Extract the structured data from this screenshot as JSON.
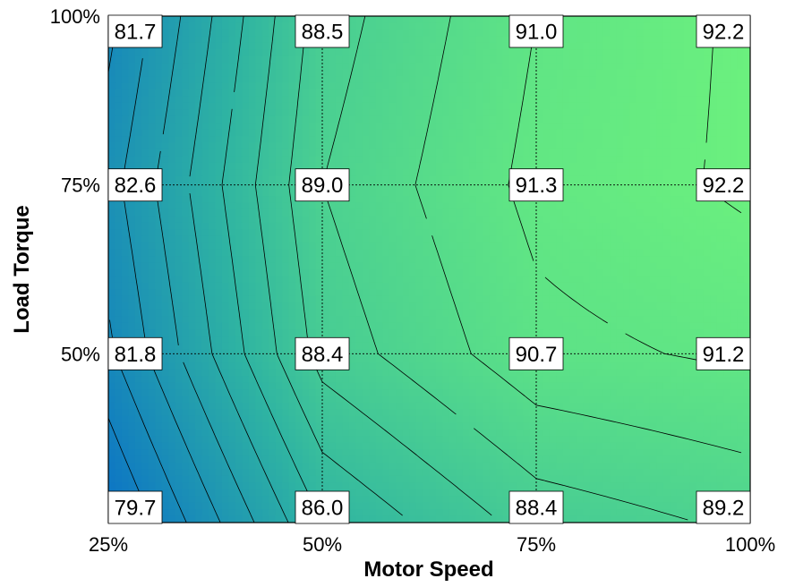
{
  "chart_data": {
    "type": "heatmap",
    "title": "",
    "xlabel": "Motor Speed",
    "ylabel": "Load Torque",
    "x": [
      25,
      50,
      75,
      100
    ],
    "y": [
      25,
      50,
      75,
      100
    ],
    "x_tick_labels": [
      "25%",
      "50%",
      "75%",
      "100%"
    ],
    "y_tick_labels": [
      "25%",
      "50%",
      "75%",
      "100%"
    ],
    "xlim": [
      25,
      100
    ],
    "ylim": [
      25,
      100
    ],
    "grid": true,
    "values": [
      [
        79.7,
        86.0,
        88.4,
        89.2
      ],
      [
        81.8,
        88.4,
        90.7,
        91.2
      ],
      [
        82.6,
        89.0,
        91.3,
        92.2
      ],
      [
        81.7,
        88.5,
        91.0,
        92.2
      ]
    ],
    "value_labels": [
      [
        "79.7",
        "86.0",
        "88.4",
        "89.2"
      ],
      [
        "81.8",
        "88.4",
        "90.7",
        "91.2"
      ],
      [
        "82.6",
        "89.0",
        "91.3",
        "92.2"
      ],
      [
        "81.7",
        "88.5",
        "91.0",
        "92.2"
      ]
    ],
    "colormap": {
      "low": "#0b72c6",
      "mid": "#2fb4a2",
      "high": "#6bf07e"
    },
    "contour_lines": true
  }
}
